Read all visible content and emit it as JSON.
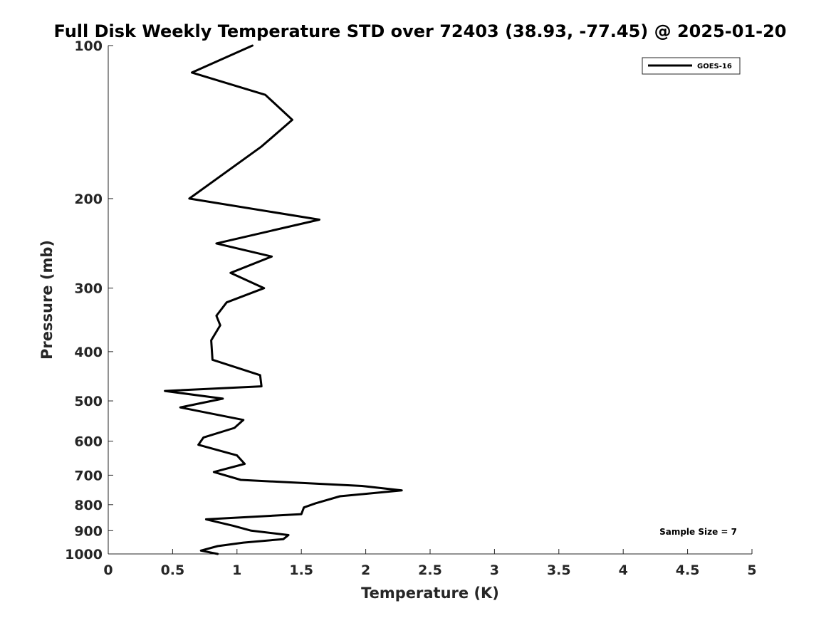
{
  "chart_data": {
    "type": "line",
    "title": "Full Disk Weekly Temperature STD over 72403 (38.93, -77.45) @ 2025-01-20",
    "xlabel": "Temperature (K)",
    "ylabel": "Pressure (mb)",
    "xlim": [
      0,
      5
    ],
    "ylim": [
      100,
      1000
    ],
    "y_scale": "log",
    "y_direction": "reversed",
    "x_ticks": [
      "0",
      "0.5",
      "1",
      "1.5",
      "2",
      "2.5",
      "3",
      "3.5",
      "4",
      "4.5",
      "5"
    ],
    "y_ticks": [
      "100",
      "200",
      "300",
      "400",
      "500",
      "600",
      "700",
      "800",
      "900",
      "1000"
    ],
    "grid": false,
    "legend_position": "top-right",
    "annotation": "Sample Size = 7",
    "series": [
      {
        "name": "GOES-16",
        "color": "#000000",
        "x": [
          1.12,
          0.65,
          1.22,
          1.43,
          1.19,
          0.63,
          1.64,
          0.84,
          1.27,
          0.95,
          1.21,
          0.92,
          0.84,
          0.87,
          0.8,
          0.81,
          1.18,
          1.19,
          0.44,
          0.89,
          0.56,
          1.05,
          0.98,
          0.74,
          0.7,
          1.0,
          1.06,
          0.82,
          1.03,
          1.97,
          2.28,
          1.8,
          1.61,
          1.52,
          1.5,
          0.76,
          0.97,
          1.11,
          1.4,
          1.36,
          1.05,
          0.85,
          0.72,
          0.85
        ],
        "y": [
          100,
          113,
          125,
          140,
          158,
          200,
          220,
          245,
          260,
          280,
          300,
          320,
          340,
          355,
          380,
          415,
          445,
          468,
          478,
          495,
          515,
          545,
          565,
          590,
          610,
          640,
          665,
          690,
          715,
          735,
          750,
          770,
          795,
          810,
          835,
          855,
          880,
          900,
          918,
          935,
          950,
          965,
          985,
          1000
        ]
      }
    ]
  }
}
